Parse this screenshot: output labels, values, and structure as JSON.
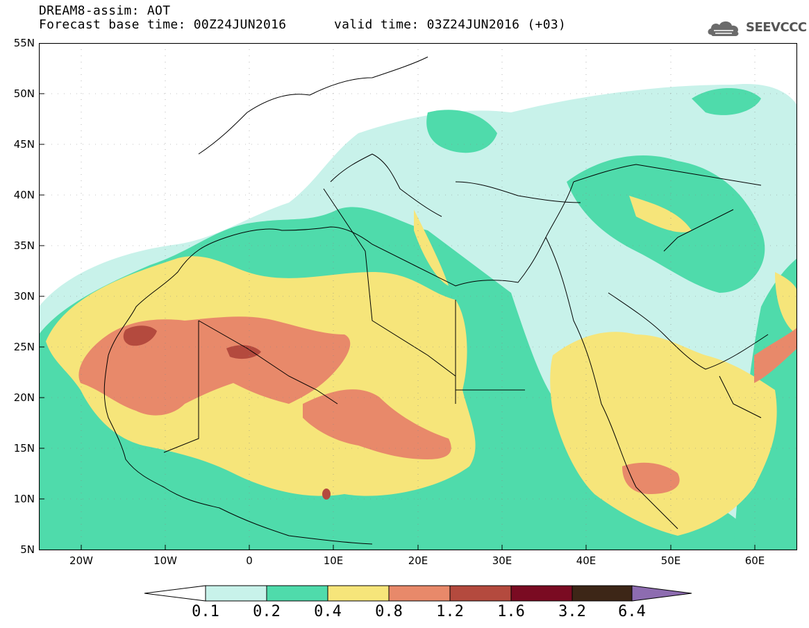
{
  "header": {
    "title_line1": "DREAM8-assim: AOT",
    "title_line2": "Forecast base time: 00Z24JUN2016",
    "valid_time": "valid time: 03Z24JUN2016 (+03)",
    "logo_text": "SEEVCCC"
  },
  "map": {
    "lat_labels": [
      "55N",
      "50N",
      "45N",
      "40N",
      "35N",
      "30N",
      "25N",
      "20N",
      "15N",
      "10N",
      "5N"
    ],
    "lon_labels": [
      "20W",
      "10W",
      "0",
      "10E",
      "20E",
      "30E",
      "40E",
      "50E",
      "60E"
    ],
    "extent": {
      "lon_min": -25,
      "lon_max": 65,
      "lat_min": 5,
      "lat_max": 55
    }
  },
  "colorbar": {
    "labels": [
      "0.1",
      "0.2",
      "0.4",
      "0.8",
      "1.2",
      "1.6",
      "3.2",
      "6.4"
    ],
    "colors": [
      "#ffffff",
      "#c8f2ea",
      "#4fdbab",
      "#f6e57a",
      "#e8896a",
      "#b44a3e",
      "#7a0b22",
      "#3d2617",
      "#8d6cb0"
    ]
  },
  "colors": {
    "background": "#ffffff",
    "very_low": "#c8f2ea",
    "low": "#4fdbab",
    "medium": "#f6e57a",
    "high": "#e8896a",
    "very_high": "#b44a3e"
  }
}
